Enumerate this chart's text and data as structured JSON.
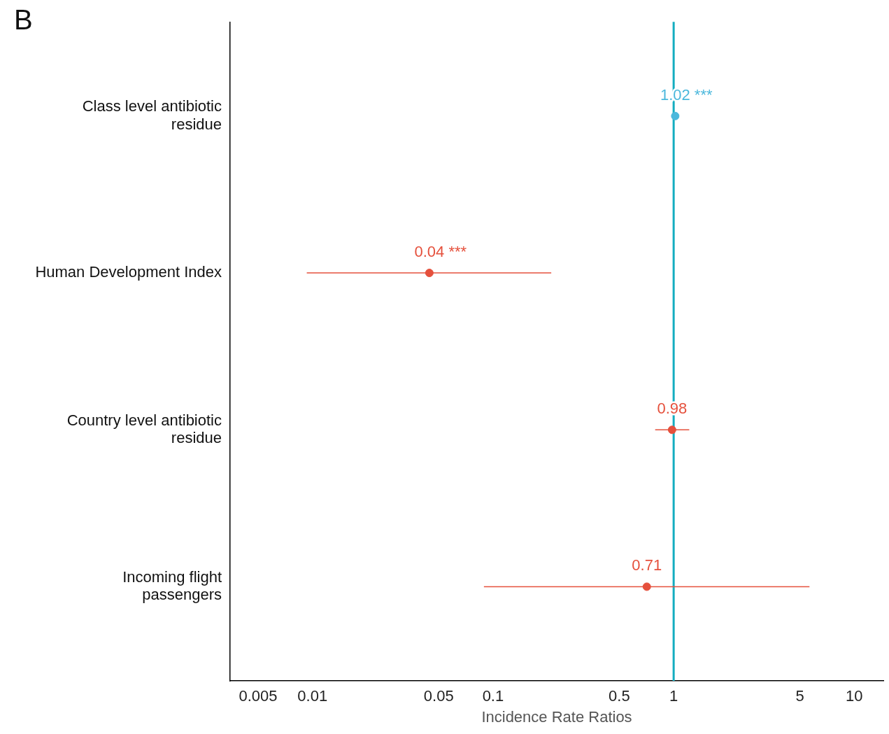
{
  "chart_data": {
    "type": "scatter",
    "orientation": "horizontal",
    "xlabel": "Incidence Rate Ratios",
    "annotations": [
      "B"
    ],
    "categories": [
      "Class level antibiotic\nresidue",
      "Human Development Index",
      "Country level antibiotic\nresidue",
      "Incoming flight\npassengers"
    ],
    "values": [
      1.02,
      0.0444,
      0.98,
      0.71
    ],
    "errors": [
      null,
      [
        0.0093,
        0.21
      ],
      [
        0.79,
        1.22
      ],
      [
        0.089,
        5.65
      ]
    ],
    "colors": [
      "#4cb8dc",
      "#e5503c",
      "#e5503c",
      "#e5503c"
    ],
    "value_labels": [
      "1.02 ***",
      "0.04 ***",
      "0.98",
      "0.71"
    ],
    "log": "x",
    "xlim": [
      0.0035,
      14.5
    ],
    "xticks": [
      0.005,
      0.01,
      0.05,
      0.1,
      0.5,
      1,
      5,
      10
    ],
    "ref_lines": [
      {
        "axis": "x",
        "value": 1,
        "color": "#14adc0"
      }
    ],
    "grid": false,
    "legend": false,
    "marker": "circle"
  }
}
